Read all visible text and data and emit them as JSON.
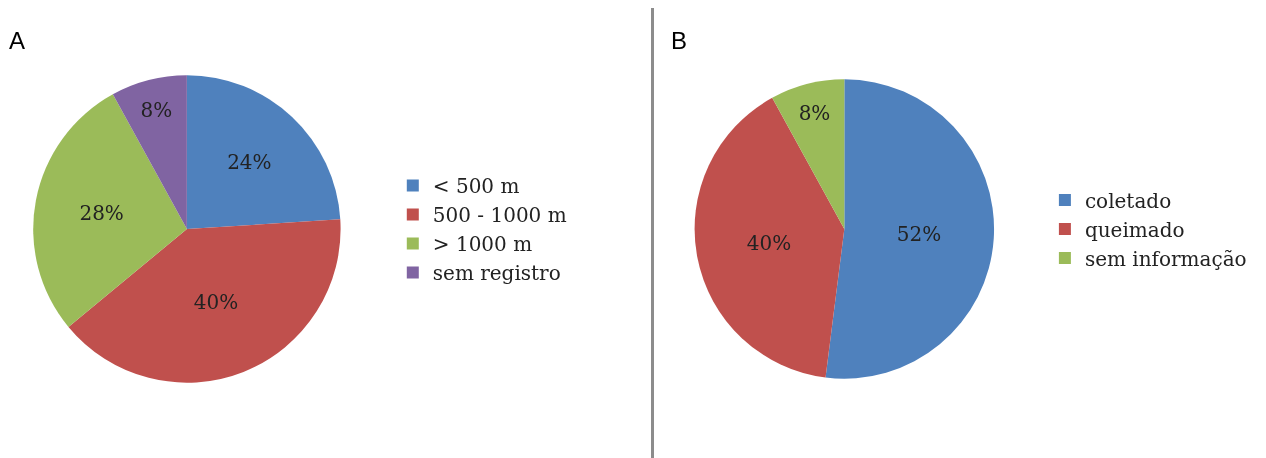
{
  "chart_data": [
    {
      "type": "pie",
      "title": "A",
      "categories": [
        "< 500 m",
        "500 - 1000 m",
        "> 1000 m",
        "sem registro"
      ],
      "values": [
        24,
        40,
        28,
        8
      ],
      "colors": [
        "#4f81bd",
        "#c0504d",
        "#9bbb59",
        "#8064a2"
      ],
      "value_labels": [
        "24%",
        "40%",
        "28%",
        "8%"
      ],
      "legend": "right"
    },
    {
      "type": "pie",
      "title": "B",
      "categories": [
        "coletado",
        "queimado",
        "sem informação"
      ],
      "values": [
        52,
        40,
        8
      ],
      "colors": [
        "#4f81bd",
        "#c0504d",
        "#9bbb59"
      ],
      "value_labels": [
        "52%",
        "40%",
        "8%"
      ],
      "legend": "right"
    }
  ]
}
